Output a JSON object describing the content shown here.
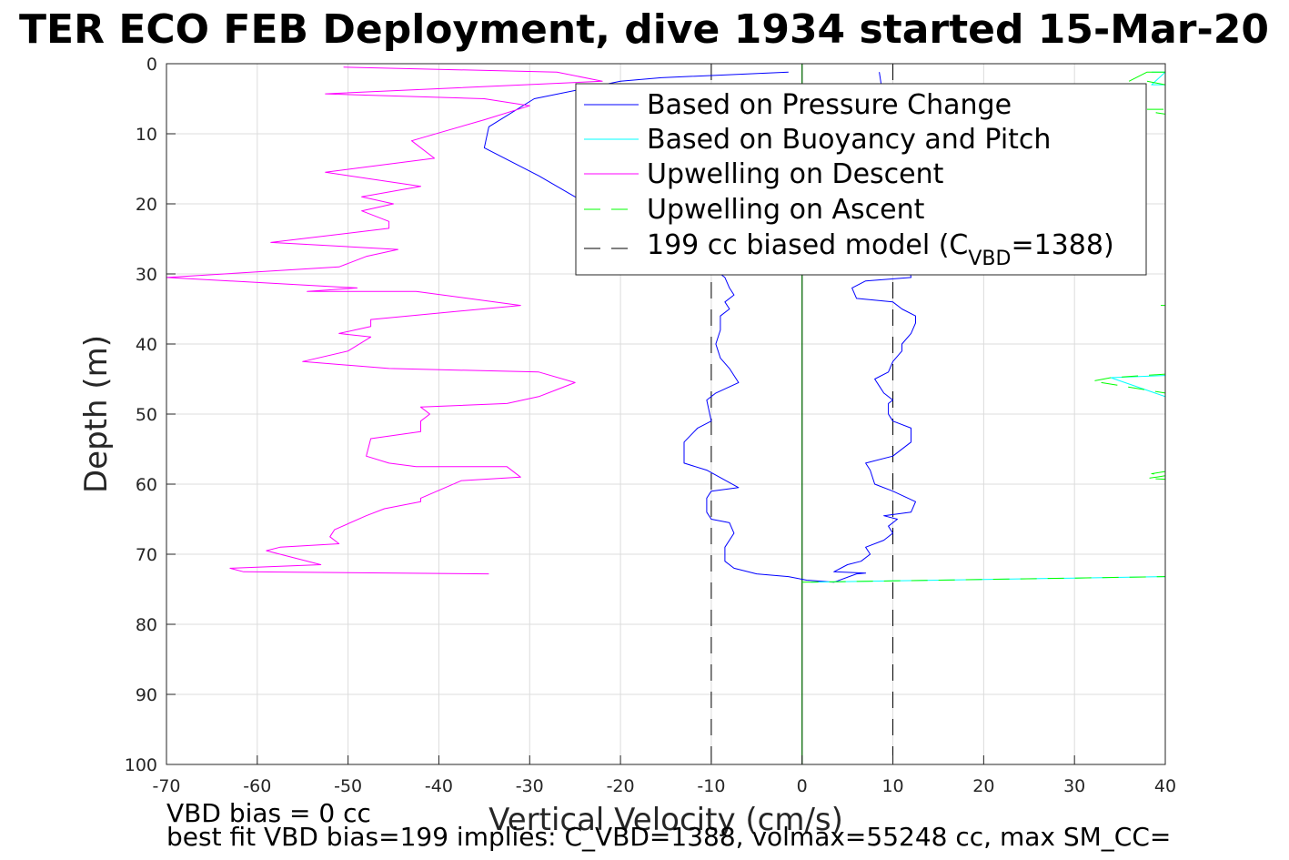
{
  "chart_data": {
    "type": "line",
    "title": "TER ECO FEB Deployment, dive 1934 started 15-Mar-20",
    "xlabel": "Vertical Velocity (cm/s)",
    "ylabel": "Depth (m)",
    "xlim": [
      -70,
      40
    ],
    "ylim": [
      0,
      100
    ],
    "y_reversed": true,
    "grid": true,
    "xticks": [
      "-70",
      "-60",
      "-50",
      "-40",
      "-30",
      "-20",
      "-10",
      "0",
      "10",
      "20",
      "30",
      "40"
    ],
    "yticks": [
      "0",
      "10",
      "20",
      "30",
      "40",
      "50",
      "60",
      "70",
      "80",
      "90",
      "100"
    ],
    "legend_position": "top-right",
    "legend": [
      {
        "label": "Based on Pressure Change",
        "color": "#0000ff",
        "dash": "solid"
      },
      {
        "label": "Based on Buoyancy and Pitch",
        "color": "#00ffff",
        "dash": "solid"
      },
      {
        "label": "Upwelling on Descent",
        "color": "#ff00ff",
        "dash": "solid"
      },
      {
        "label": "Upwelling on Ascent",
        "color": "#00ff00",
        "dash": "dashed"
      },
      {
        "label_main": "199 cc biased model (C",
        "label_sub": "VBD",
        "label_tail": "=1388)",
        "color": "#000000",
        "dash": "dashed"
      }
    ],
    "reference_lines": [
      {
        "x": -10,
        "color": "#000000",
        "dash": "dashed"
      },
      {
        "x": 10,
        "color": "#000000",
        "dash": "dashed"
      },
      {
        "x": 0,
        "color": "#000000",
        "dash": "solid"
      },
      {
        "x": 0,
        "color": "#008000",
        "dash": "solid"
      }
    ],
    "series": [
      {
        "name": "Based on Pressure Change",
        "color": "#0000ff",
        "points": [
          [
            -1.5,
            1.2
          ],
          [
            -15.5,
            2.0
          ],
          [
            -20,
            2.5
          ],
          [
            -29.5,
            5
          ],
          [
            -34.5,
            9
          ],
          [
            -35,
            12
          ],
          [
            -29,
            16
          ],
          [
            -25,
            19
          ],
          [
            -20,
            22
          ],
          [
            -14,
            26
          ],
          [
            -10,
            29
          ],
          [
            -8.5,
            30.5
          ],
          [
            -8,
            32
          ],
          [
            -7.5,
            33
          ],
          [
            -8.5,
            34
          ],
          [
            -8,
            35
          ],
          [
            -9,
            36
          ],
          [
            -9,
            38
          ],
          [
            -9.5,
            40
          ],
          [
            -9,
            42
          ],
          [
            -8,
            43.5
          ],
          [
            -7,
            45.5
          ],
          [
            -9.5,
            47
          ],
          [
            -10.5,
            48
          ],
          [
            -10,
            51
          ],
          [
            -11.5,
            52
          ],
          [
            -13,
            54
          ],
          [
            -13,
            57
          ],
          [
            -10.5,
            58
          ],
          [
            -7,
            60.5
          ],
          [
            -10,
            61
          ],
          [
            -10.5,
            62
          ],
          [
            -10.5,
            64
          ],
          [
            -10,
            65
          ],
          [
            -8,
            65.5
          ],
          [
            -7.5,
            67
          ],
          [
            -8.5,
            69
          ],
          [
            -8.5,
            71
          ],
          [
            -7.5,
            72
          ],
          [
            -5,
            72.8
          ],
          [
            -1.5,
            73.2
          ],
          [
            0.5,
            73.7
          ],
          [
            3.5,
            74
          ],
          [
            6,
            72.8
          ],
          [
            7,
            72.7
          ],
          [
            3.5,
            72.5
          ],
          [
            5,
            71.5
          ],
          [
            6.5,
            71
          ],
          [
            7.5,
            70
          ],
          [
            7,
            69
          ],
          [
            9,
            68
          ],
          [
            10,
            67
          ],
          [
            9.5,
            66
          ],
          [
            10.5,
            65
          ],
          [
            9,
            64.5
          ],
          [
            12,
            64
          ],
          [
            12.5,
            62.5
          ],
          [
            10,
            61
          ],
          [
            8,
            60
          ],
          [
            7.5,
            58
          ],
          [
            7,
            57
          ],
          [
            10,
            56
          ],
          [
            12,
            54
          ],
          [
            12,
            52
          ],
          [
            10,
            51
          ],
          [
            9.5,
            50
          ],
          [
            9.5,
            48.5
          ],
          [
            10,
            48
          ],
          [
            9,
            47
          ],
          [
            8.5,
            46
          ],
          [
            8,
            45
          ],
          [
            9.5,
            44
          ],
          [
            10,
            42.5
          ],
          [
            11,
            41
          ],
          [
            11,
            40
          ],
          [
            12,
            38.5
          ],
          [
            12.5,
            37
          ],
          [
            12.5,
            36
          ],
          [
            11,
            35
          ],
          [
            10,
            34
          ],
          [
            6,
            33.5
          ],
          [
            5.5,
            32
          ],
          [
            7,
            31
          ],
          [
            12,
            30.5
          ],
          [
            8.5,
            1.2
          ]
        ]
      },
      {
        "name": "Based on Buoyancy and Pitch",
        "color": "#00ffff",
        "points": [
          [
            1,
            74
          ],
          [
            10,
            73.8
          ],
          [
            20,
            73.6
          ],
          [
            30,
            73.4
          ],
          [
            40,
            73.2
          ]
        ]
      },
      {
        "name": "Based on Buoyancy and Pitch",
        "color": "#00ffff",
        "points": [
          [
            38.5,
            1.2
          ],
          [
            40,
            1.2
          ],
          [
            38.5,
            3
          ],
          [
            40,
            3
          ]
        ]
      },
      {
        "name": "Based on Buoyancy and Pitch",
        "color": "#00ffff",
        "points": [
          [
            40,
            44.5
          ],
          [
            34,
            44.8
          ],
          [
            40,
            47.5
          ]
        ]
      },
      {
        "name": "Upwelling on Descent",
        "color": "#ff00ff",
        "points": [
          [
            -50.5,
            0.5
          ],
          [
            -27,
            1.2
          ],
          [
            -22,
            2.5
          ],
          [
            -52.5,
            4.3
          ],
          [
            -35,
            5
          ],
          [
            -30,
            6
          ],
          [
            -35,
            8
          ],
          [
            -43,
            11
          ],
          [
            -40.5,
            13.5
          ],
          [
            -52.5,
            15.5
          ],
          [
            -42,
            17.5
          ],
          [
            -48.5,
            19
          ],
          [
            -45,
            20
          ],
          [
            -48.5,
            21
          ],
          [
            -45.5,
            22.5
          ],
          [
            -45.5,
            23.5
          ],
          [
            -58.5,
            25.5
          ],
          [
            -44.5,
            26.5
          ],
          [
            -48,
            27.5
          ],
          [
            -51,
            29
          ],
          [
            -70,
            30.5
          ],
          [
            -49,
            32
          ],
          [
            -54.5,
            32.5
          ],
          [
            -42.5,
            32.5
          ],
          [
            -31,
            34.5
          ],
          [
            -47.5,
            36.5
          ],
          [
            -47.5,
            37.5
          ],
          [
            -51,
            38.5
          ],
          [
            -47.5,
            39
          ],
          [
            -50,
            41
          ],
          [
            -55,
            42.5
          ],
          [
            -45.5,
            43.5
          ],
          [
            -29,
            44
          ],
          [
            -25,
            45.5
          ],
          [
            -27,
            46.5
          ],
          [
            -29,
            47.5
          ],
          [
            -32.5,
            48.5
          ],
          [
            -42,
            49
          ],
          [
            -41,
            50
          ],
          [
            -42,
            51
          ],
          [
            -42,
            52.5
          ],
          [
            -47.5,
            53.5
          ],
          [
            -48,
            56
          ],
          [
            -45.5,
            57
          ],
          [
            -42.5,
            57.5
          ],
          [
            -32.5,
            57.5
          ],
          [
            -31,
            59
          ],
          [
            -37.5,
            59.5
          ],
          [
            -42,
            62
          ],
          [
            -42,
            62.5
          ],
          [
            -46,
            63.5
          ],
          [
            -48,
            64.5
          ],
          [
            -51.5,
            66.5
          ],
          [
            -52,
            67.5
          ],
          [
            -51,
            68.5
          ],
          [
            -57.5,
            69
          ],
          [
            -59,
            69.5
          ],
          [
            -53,
            71.5
          ],
          [
            -63,
            72
          ],
          [
            -61.5,
            72.5
          ],
          [
            -34.5,
            72.8
          ]
        ]
      },
      {
        "name": "Upwelling on Ascent",
        "color": "#00ff00",
        "points": [
          [
            0,
            74
          ],
          [
            10,
            73.8
          ],
          [
            20,
            73.6
          ],
          [
            30,
            73.4
          ],
          [
            40,
            73.2
          ]
        ]
      },
      {
        "name": "Upwelling on Ascent",
        "color": "#00ff00",
        "points": [
          [
            36,
            2.5
          ],
          [
            38,
            1.2
          ],
          [
            40,
            1.2
          ]
        ]
      },
      {
        "name": "Upwelling on Ascent",
        "color": "#00ff00",
        "points": [
          [
            38,
            2.5
          ],
          [
            40,
            3
          ]
        ]
      },
      {
        "name": "Upwelling on Ascent",
        "color": "#00ff00",
        "points": [
          [
            38,
            6.5
          ],
          [
            40,
            6.5
          ],
          [
            39,
            7
          ],
          [
            40,
            7.2
          ]
        ]
      },
      {
        "name": "Upwelling on Ascent",
        "color": "#00ff00",
        "points": [
          [
            39.5,
            34.5
          ],
          [
            40,
            34.5
          ]
        ]
      },
      {
        "name": "Upwelling on Ascent",
        "color": "#00ff00",
        "points": [
          [
            40,
            44.3
          ],
          [
            34,
            44.8
          ],
          [
            32,
            45.3
          ],
          [
            40,
            47
          ]
        ]
      },
      {
        "name": "Upwelling on Ascent",
        "color": "#00ff00",
        "points": [
          [
            40,
            58.2
          ],
          [
            38.5,
            58.5
          ],
          [
            40,
            58.8
          ],
          [
            38,
            59.2
          ],
          [
            40,
            59.3
          ]
        ]
      }
    ]
  },
  "footer": {
    "line1": "VBD bias = 0 cc",
    "line2": "best fit VBD bias=199 implies: C_VBD=1388, volmax=55248 cc, max SM_CC="
  }
}
